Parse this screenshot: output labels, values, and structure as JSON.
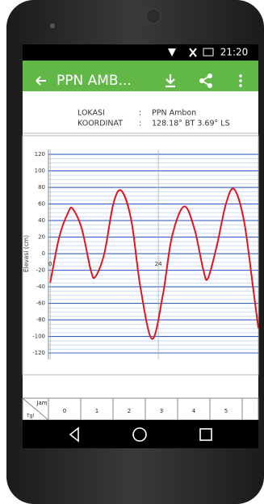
{
  "status_bar": {
    "time": "21:20"
  },
  "app_bar": {
    "title": "PPN AMB..."
  },
  "info": {
    "rows": [
      [
        "LOKASI",
        ":",
        "PPN Ambon"
      ],
      [
        "KOORDINAT",
        ":",
        "128.18° BT 3.69° LS"
      ]
    ]
  },
  "chart_data": {
    "type": "line",
    "y_label": "Elevasi (cm)",
    "color": "#e0161e",
    "x": [
      0,
      2,
      4,
      5,
      7,
      9,
      10,
      12,
      14,
      15.8,
      18,
      20,
      22.6,
      25,
      27,
      29.7,
      32,
      34,
      35,
      37,
      39,
      40.8,
      43,
      45,
      46.2
    ],
    "values": [
      -35,
      20,
      50,
      54,
      30,
      -20,
      -28,
      0,
      60,
      76,
      40,
      -40,
      -103,
      -50,
      20,
      57,
      30,
      -20,
      -30,
      10,
      60,
      78,
      40,
      -40,
      -90
    ],
    "xlim": [
      -0.4,
      46.2
    ],
    "xticks": [
      0,
      24
    ],
    "ylim": [
      -120,
      120
    ],
    "yticks": [
      -120,
      -100,
      -80,
      -60,
      -40,
      -20,
      0,
      20,
      40,
      60,
      80,
      100,
      120
    ],
    "grid": true
  },
  "table": {
    "corner_top": "Jam",
    "corner_bottom": "Tgl",
    "hours": [
      "0",
      "1",
      "2",
      "3",
      "4",
      "5"
    ]
  }
}
